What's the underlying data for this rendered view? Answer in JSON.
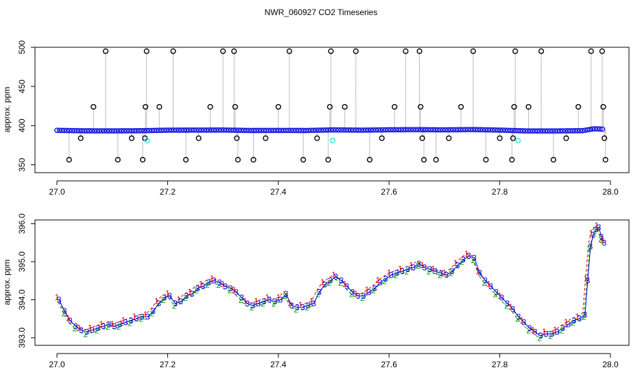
{
  "title": "NWR_060927  CO2 Timeseries",
  "chart_data": [
    {
      "type": "scatter",
      "panel": "top",
      "ylabel": "approx. ppm",
      "xlabel": "",
      "xlim": [
        27.0,
        28.0
      ],
      "ylim": [
        340,
        500
      ],
      "x_ticks": [
        "27.0",
        "27.2",
        "27.4",
        "27.6",
        "27.8",
        "28.0"
      ],
      "y_ticks": [
        "350",
        "400",
        "450",
        "500"
      ],
      "baseline_series": {
        "color": "#1010e0",
        "points": [
          [
            27.0,
            394
          ],
          [
            27.05,
            393.4
          ],
          [
            27.1,
            393.3
          ],
          [
            27.15,
            393.5
          ],
          [
            27.2,
            394.2
          ],
          [
            27.25,
            394.3
          ],
          [
            27.3,
            394.4
          ],
          [
            27.35,
            393.8
          ],
          [
            27.4,
            393.9
          ],
          [
            27.45,
            393.8
          ],
          [
            27.5,
            394.6
          ],
          [
            27.55,
            394.2
          ],
          [
            27.6,
            394.7
          ],
          [
            27.65,
            394.9
          ],
          [
            27.7,
            394.6
          ],
          [
            27.75,
            395
          ],
          [
            27.8,
            394.3
          ],
          [
            27.85,
            393.2
          ],
          [
            27.9,
            393.2
          ],
          [
            27.95,
            393.6
          ],
          [
            27.97,
            396
          ],
          [
            27.99,
            395.4
          ]
        ]
      },
      "outliers": [
        [
          27.022,
          356.5
        ],
        [
          27.043,
          384
        ],
        [
          27.066,
          424
        ],
        [
          27.088,
          495
        ],
        [
          27.11,
          356.5
        ],
        [
          27.135,
          384
        ],
        [
          27.155,
          356.5
        ],
        [
          27.159,
          384
        ],
        [
          27.16,
          424
        ],
        [
          27.162,
          495
        ],
        [
          27.185,
          424
        ],
        [
          27.21,
          495
        ],
        [
          27.233,
          356.5
        ],
        [
          27.256,
          384
        ],
        [
          27.277,
          424
        ],
        [
          27.3,
          495
        ],
        [
          27.32,
          495
        ],
        [
          27.322,
          424
        ],
        [
          27.325,
          384
        ],
        [
          27.327,
          356.5
        ],
        [
          27.355,
          356.5
        ],
        [
          27.377,
          384
        ],
        [
          27.4,
          424
        ],
        [
          27.42,
          495
        ],
        [
          27.445,
          356.5
        ],
        [
          27.47,
          384
        ],
        [
          27.49,
          356.5
        ],
        [
          27.493,
          424
        ],
        [
          27.495,
          495
        ],
        [
          27.52,
          424
        ],
        [
          27.54,
          495
        ],
        [
          27.565,
          356.5
        ],
        [
          27.587,
          384
        ],
        [
          27.61,
          424
        ],
        [
          27.63,
          495
        ],
        [
          27.655,
          495
        ],
        [
          27.657,
          424
        ],
        [
          27.66,
          384
        ],
        [
          27.663,
          356.5
        ],
        [
          27.685,
          356.5
        ],
        [
          27.708,
          384
        ],
        [
          27.73,
          424
        ],
        [
          27.752,
          495
        ],
        [
          27.775,
          356.5
        ],
        [
          27.8,
          384
        ],
        [
          27.822,
          356.5
        ],
        [
          27.824,
          384
        ],
        [
          27.826,
          424
        ],
        [
          27.828,
          495
        ],
        [
          27.852,
          424
        ],
        [
          27.875,
          495
        ],
        [
          27.897,
          356.5
        ],
        [
          27.92,
          384
        ],
        [
          27.942,
          424
        ],
        [
          27.965,
          495
        ],
        [
          27.985,
          495
        ],
        [
          27.987,
          424
        ],
        [
          27.989,
          384
        ],
        [
          27.991,
          356.5
        ]
      ],
      "cyan_points": [
        [
          27.163,
          381
        ],
        [
          27.498,
          381
        ],
        [
          27.833,
          381
        ]
      ],
      "cyan_color": "#40e0e0",
      "spike_line_color": "#7a7a7a"
    },
    {
      "type": "scatter",
      "panel": "bottom",
      "ylabel": "approx. ppm",
      "xlabel": "",
      "xlim": [
        27.0,
        28.0
      ],
      "ylim": [
        392.8,
        396.1
      ],
      "x_ticks": [
        "27.0",
        "27.2",
        "27.4",
        "27.6",
        "27.8",
        "28.0"
      ],
      "y_ticks": [
        "393.0",
        "394.0",
        "395.0",
        "396.0"
      ],
      "series": [
        {
          "name": "1",
          "color": "#e00000"
        },
        {
          "name": "2",
          "color": "#00a000"
        },
        {
          "name": "3",
          "color": "#0000e0"
        }
      ],
      "points": [
        [
          27.0,
          394
        ],
        [
          27.01,
          393.7
        ],
        [
          27.02,
          393.45
        ],
        [
          27.03,
          393.3
        ],
        [
          27.04,
          393.2
        ],
        [
          27.05,
          393.15
        ],
        [
          27.06,
          393.2
        ],
        [
          27.07,
          393.25
        ],
        [
          27.08,
          393.3
        ],
        [
          27.09,
          393.35
        ],
        [
          27.1,
          393.3
        ],
        [
          27.11,
          393.35
        ],
        [
          27.12,
          393.4
        ],
        [
          27.13,
          393.45
        ],
        [
          27.14,
          393.5
        ],
        [
          27.15,
          393.55
        ],
        [
          27.16,
          393.55
        ],
        [
          27.17,
          393.7
        ],
        [
          27.18,
          393.9
        ],
        [
          27.19,
          394.05
        ],
        [
          27.2,
          394.1
        ],
        [
          27.21,
          393.9
        ],
        [
          27.22,
          393.95
        ],
        [
          27.23,
          394.1
        ],
        [
          27.24,
          394.15
        ],
        [
          27.25,
          394.3
        ],
        [
          27.26,
          394.35
        ],
        [
          27.27,
          394.45
        ],
        [
          27.28,
          394.5
        ],
        [
          27.29,
          394.45
        ],
        [
          27.3,
          394.35
        ],
        [
          27.31,
          394.3
        ],
        [
          27.32,
          394.2
        ],
        [
          27.33,
          394.05
        ],
        [
          27.34,
          393.9
        ],
        [
          27.35,
          393.85
        ],
        [
          27.36,
          393.9
        ],
        [
          27.37,
          393.95
        ],
        [
          27.38,
          394
        ],
        [
          27.39,
          393.95
        ],
        [
          27.4,
          394
        ],
        [
          27.41,
          394.15
        ],
        [
          27.42,
          393.85
        ],
        [
          27.43,
          393.8
        ],
        [
          27.44,
          393.8
        ],
        [
          27.45,
          393.85
        ],
        [
          27.46,
          393.9
        ],
        [
          27.47,
          394.2
        ],
        [
          27.48,
          394.4
        ],
        [
          27.49,
          394.5
        ],
        [
          27.5,
          394.6
        ],
        [
          27.51,
          394.5
        ],
        [
          27.52,
          394.35
        ],
        [
          27.53,
          394.2
        ],
        [
          27.54,
          394.1
        ],
        [
          27.55,
          394.1
        ],
        [
          27.56,
          394.2
        ],
        [
          27.57,
          394.3
        ],
        [
          27.58,
          394.45
        ],
        [
          27.59,
          394.55
        ],
        [
          27.6,
          394.65
        ],
        [
          27.61,
          394.7
        ],
        [
          27.62,
          394.75
        ],
        [
          27.63,
          394.8
        ],
        [
          27.64,
          394.85
        ],
        [
          27.65,
          394.95
        ],
        [
          27.66,
          394.85
        ],
        [
          27.67,
          394.8
        ],
        [
          27.68,
          394.75
        ],
        [
          27.69,
          394.7
        ],
        [
          27.7,
          394.65
        ],
        [
          27.71,
          394.75
        ],
        [
          27.72,
          394.9
        ],
        [
          27.73,
          395.05
        ],
        [
          27.74,
          395.15
        ],
        [
          27.75,
          395.1
        ],
        [
          27.76,
          394.7
        ],
        [
          27.77,
          394.5
        ],
        [
          27.78,
          394.35
        ],
        [
          27.79,
          394.2
        ],
        [
          27.8,
          394.05
        ],
        [
          27.81,
          393.9
        ],
        [
          27.82,
          393.75
        ],
        [
          27.83,
          393.55
        ],
        [
          27.84,
          393.4
        ],
        [
          27.85,
          393.25
        ],
        [
          27.86,
          393.15
        ],
        [
          27.87,
          393.05
        ],
        [
          27.88,
          393.1
        ],
        [
          27.89,
          393.1
        ],
        [
          27.9,
          393.15
        ],
        [
          27.91,
          393.25
        ],
        [
          27.92,
          393.35
        ],
        [
          27.93,
          393.45
        ],
        [
          27.94,
          393.5
        ],
        [
          27.95,
          393.6
        ],
        [
          27.955,
          394.5
        ],
        [
          27.96,
          395.4
        ],
        [
          27.965,
          395.7
        ],
        [
          27.97,
          395.85
        ],
        [
          27.975,
          395.9
        ],
        [
          27.98,
          395.65
        ],
        [
          27.985,
          395.5
        ]
      ]
    }
  ]
}
